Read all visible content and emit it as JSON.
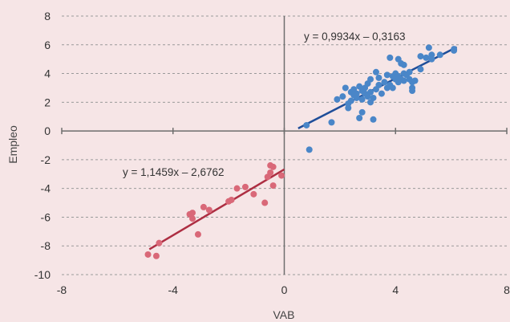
{
  "chart_data": {
    "type": "scatter",
    "title": "",
    "xlabel": "VAB",
    "ylabel": "Empleo",
    "xlim": [
      -8,
      8
    ],
    "ylim": [
      -10,
      8
    ],
    "x_ticks": [
      -8,
      -4,
      0,
      4,
      8
    ],
    "y_ticks": [
      8,
      6,
      4,
      2,
      0,
      -2,
      -4,
      -6,
      -8,
      -10
    ],
    "x_tick_labels": [
      "-8",
      "-4",
      "0",
      "4",
      "8"
    ],
    "y_tick_labels": [
      "8",
      "6",
      "4",
      "2",
      "0",
      "-2",
      "-4",
      "-6",
      "-8",
      "-10"
    ],
    "grid": "horizontal dashed",
    "colors": {
      "positive_points": "#4a86c8",
      "positive_line": "#1f4e99",
      "negative_points": "#d96878",
      "negative_line": "#ad2e42",
      "axes": "#6e6e6e",
      "background": "#f6e5e6"
    },
    "series": [
      {
        "color": "#4a86c8",
        "points": [
          [
            0.8,
            0.4
          ],
          [
            0.9,
            -1.3
          ],
          [
            1.7,
            0.6
          ],
          [
            1.9,
            2.2
          ],
          [
            2.1,
            2.4
          ],
          [
            2.2,
            3.0
          ],
          [
            2.3,
            1.6
          ],
          [
            2.3,
            1.9
          ],
          [
            2.4,
            2.7
          ],
          [
            2.4,
            2.1
          ],
          [
            2.5,
            2.5
          ],
          [
            2.5,
            2.9
          ],
          [
            2.6,
            2.3
          ],
          [
            2.6,
            2.6
          ],
          [
            2.7,
            3.1
          ],
          [
            2.7,
            0.9
          ],
          [
            2.8,
            2.8
          ],
          [
            2.8,
            2.2
          ],
          [
            2.8,
            1.3
          ],
          [
            2.9,
            2.6
          ],
          [
            2.9,
            3.0
          ],
          [
            3.0,
            2.4
          ],
          [
            3.0,
            3.3
          ],
          [
            3.1,
            2.7
          ],
          [
            3.1,
            3.6
          ],
          [
            3.1,
            2.0
          ],
          [
            3.2,
            0.8
          ],
          [
            3.2,
            2.3
          ],
          [
            3.3,
            4.1
          ],
          [
            3.3,
            2.9
          ],
          [
            3.4,
            3.2
          ],
          [
            3.4,
            3.7
          ],
          [
            3.5,
            2.6
          ],
          [
            3.6,
            3.4
          ],
          [
            3.7,
            3.0
          ],
          [
            3.7,
            3.9
          ],
          [
            3.8,
            3.2
          ],
          [
            3.8,
            5.1
          ],
          [
            3.9,
            3.8
          ],
          [
            3.9,
            3.0
          ],
          [
            4.0,
            4.0
          ],
          [
            4.0,
            3.6
          ],
          [
            4.1,
            3.4
          ],
          [
            4.1,
            3.8
          ],
          [
            4.1,
            5.0
          ],
          [
            4.2,
            4.7
          ],
          [
            4.2,
            3.6
          ],
          [
            4.3,
            4.0
          ],
          [
            4.3,
            3.5
          ],
          [
            4.3,
            4.6
          ],
          [
            4.4,
            3.9
          ],
          [
            4.5,
            3.6
          ],
          [
            4.5,
            4.1
          ],
          [
            4.6,
            3.0
          ],
          [
            4.6,
            3.4
          ],
          [
            4.6,
            2.8
          ],
          [
            4.7,
            3.5
          ],
          [
            4.9,
            4.3
          ],
          [
            4.9,
            5.2
          ],
          [
            5.1,
            5.1
          ],
          [
            5.2,
            5.8
          ],
          [
            5.3,
            5.0
          ],
          [
            5.3,
            5.3
          ],
          [
            5.6,
            5.3
          ],
          [
            6.1,
            5.7
          ],
          [
            6.1,
            5.6
          ]
        ],
        "trendline": {
          "equation": "y = 0,9934x – 0,3163",
          "slope": 0.9934,
          "intercept": -0.3163,
          "x_range": [
            0.5,
            6.2
          ]
        }
      },
      {
        "color": "#d96878",
        "points": [
          [
            -4.9,
            -8.6
          ],
          [
            -4.6,
            -8.7
          ],
          [
            -4.5,
            -7.8
          ],
          [
            -3.4,
            -5.8
          ],
          [
            -3.3,
            -5.7
          ],
          [
            -3.3,
            -6.1
          ],
          [
            -3.1,
            -7.2
          ],
          [
            -2.9,
            -5.3
          ],
          [
            -2.7,
            -5.5
          ],
          [
            -2.0,
            -4.9
          ],
          [
            -1.9,
            -4.8
          ],
          [
            -1.7,
            -4.0
          ],
          [
            -1.4,
            -3.9
          ],
          [
            -1.1,
            -4.4
          ],
          [
            -0.7,
            -5.0
          ],
          [
            -0.6,
            -3.2
          ],
          [
            -0.5,
            -2.9
          ],
          [
            -0.5,
            -2.4
          ],
          [
            -0.4,
            -2.5
          ],
          [
            -0.4,
            -3.8
          ],
          [
            -0.1,
            -3.1
          ]
        ],
        "trendline": {
          "equation": "y = 1,1459x – 2,6762",
          "slope": 1.1459,
          "intercept": -2.6762,
          "x_range": [
            -4.85,
            0.0
          ]
        }
      }
    ]
  }
}
